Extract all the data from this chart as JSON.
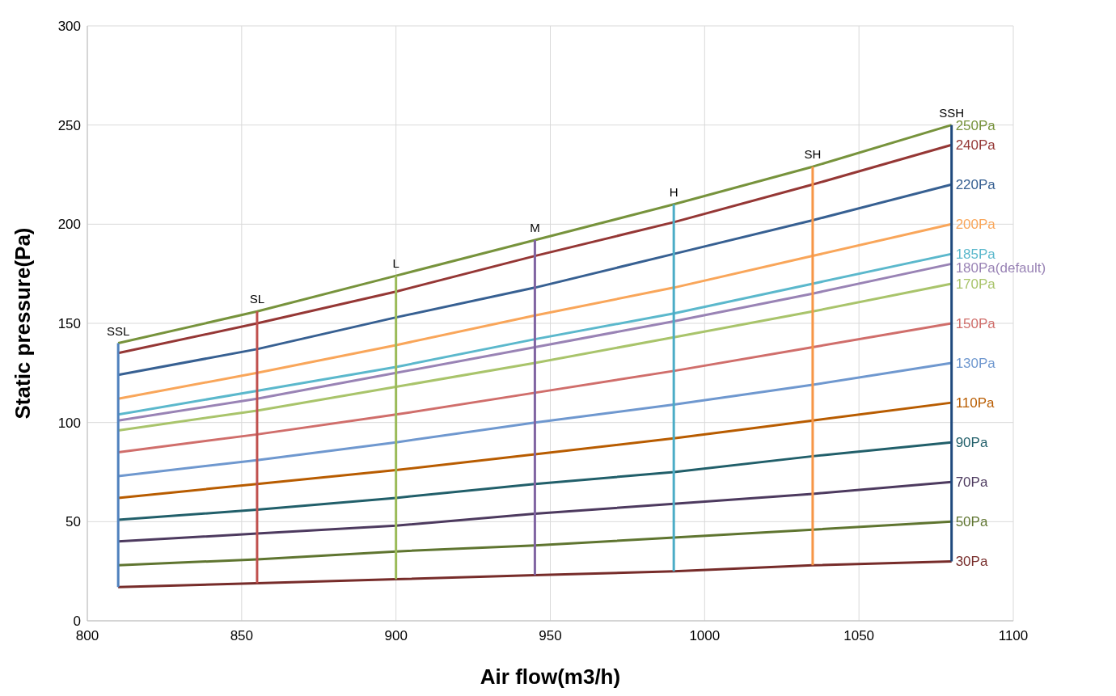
{
  "chart_data": {
    "type": "line",
    "xlabel": "Air flow(m3/h)",
    "ylabel": "Static pressure(Pa)",
    "xlim": [
      800,
      1100
    ],
    "xticks": [
      800,
      850,
      900,
      950,
      1000,
      1050,
      1100
    ],
    "ylim": [
      0,
      300
    ],
    "yticks": [
      0,
      50,
      100,
      150,
      200,
      250,
      300
    ],
    "grid": true,
    "marker": "none",
    "line_style": "solid",
    "series": [
      {
        "name": "250Pa",
        "color": "#77933c",
        "x": [
          810,
          855,
          900,
          945,
          990,
          1035,
          1080
        ],
        "values": [
          140,
          156,
          174,
          192,
          210,
          229,
          250
        ]
      },
      {
        "name": "240Pa",
        "color": "#953735",
        "x": [
          810,
          855,
          900,
          945,
          990,
          1035,
          1080
        ],
        "values": [
          135,
          150,
          166,
          184,
          201,
          220,
          240
        ]
      },
      {
        "name": "220Pa",
        "color": "#376092",
        "x": [
          810,
          855,
          900,
          945,
          990,
          1035,
          1080
        ],
        "values": [
          124,
          137,
          153,
          168,
          185,
          202,
          220
        ]
      },
      {
        "name": "200Pa",
        "color": "#f9a65a",
        "x": [
          810,
          855,
          900,
          945,
          990,
          1035,
          1080
        ],
        "values": [
          112,
          125,
          139,
          154,
          168,
          184,
          200
        ]
      },
      {
        "name": "185Pa",
        "color": "#5bb8cc",
        "x": [
          810,
          855,
          900,
          945,
          990,
          1035,
          1080
        ],
        "values": [
          104,
          116,
          128,
          142,
          155,
          170,
          185
        ]
      },
      {
        "name": "180Pa(default)",
        "color": "#9983b5",
        "x": [
          810,
          855,
          900,
          945,
          990,
          1035,
          1080
        ],
        "values": [
          101,
          112,
          125,
          138,
          151,
          165,
          180
        ]
      },
      {
        "name": "170Pa",
        "color": "#a9c46b",
        "x": [
          810,
          855,
          900,
          945,
          990,
          1035,
          1080
        ],
        "values": [
          96,
          106,
          118,
          130,
          143,
          156,
          170
        ]
      },
      {
        "name": "150Pa",
        "color": "#d06e6b",
        "x": [
          810,
          855,
          900,
          945,
          990,
          1035,
          1080
        ],
        "values": [
          85,
          94,
          104,
          115,
          126,
          138,
          150
        ]
      },
      {
        "name": "130Pa",
        "color": "#6f98cf",
        "x": [
          810,
          855,
          900,
          945,
          990,
          1035,
          1080
        ],
        "values": [
          73,
          81,
          90,
          100,
          109,
          119,
          130
        ]
      },
      {
        "name": "110Pa",
        "color": "#b85c00",
        "x": [
          810,
          855,
          900,
          945,
          990,
          1035,
          1080
        ],
        "values": [
          62,
          69,
          76,
          84,
          92,
          101,
          110
        ]
      },
      {
        "name": "90Pa",
        "color": "#215f6a",
        "x": [
          810,
          855,
          900,
          945,
          990,
          1035,
          1080
        ],
        "values": [
          51,
          56,
          62,
          69,
          75,
          83,
          90
        ]
      },
      {
        "name": "70Pa",
        "color": "#4d3a5f",
        "x": [
          810,
          855,
          900,
          945,
          990,
          1035,
          1080
        ],
        "values": [
          40,
          44,
          48,
          54,
          59,
          64,
          70
        ]
      },
      {
        "name": "50Pa",
        "color": "#5f7530",
        "x": [
          810,
          855,
          900,
          945,
          990,
          1035,
          1080
        ],
        "values": [
          28,
          31,
          35,
          38,
          42,
          46,
          50
        ]
      },
      {
        "name": "30Pa",
        "color": "#772c2a",
        "x": [
          810,
          855,
          900,
          945,
          990,
          1035,
          1080
        ],
        "values": [
          17,
          19,
          21,
          23,
          25,
          28,
          30
        ]
      },
      {
        "name": "SSL",
        "color": "#4f81bd",
        "x": [
          810,
          810
        ],
        "values": [
          17,
          140
        ]
      },
      {
        "name": "SL",
        "color": "#c0504d",
        "x": [
          855,
          855
        ],
        "values": [
          19,
          156
        ]
      },
      {
        "name": "L",
        "color": "#9bbb59",
        "x": [
          900,
          900
        ],
        "values": [
          21,
          174
        ]
      },
      {
        "name": "M",
        "color": "#8064a2",
        "x": [
          945,
          945
        ],
        "values": [
          23,
          192
        ]
      },
      {
        "name": "H",
        "color": "#4bacc6",
        "x": [
          990,
          990
        ],
        "values": [
          25,
          210
        ]
      },
      {
        "name": "SH",
        "color": "#f79646",
        "x": [
          1035,
          1035
        ],
        "values": [
          28,
          229
        ]
      },
      {
        "name": "SSH",
        "color": "#1f497d",
        "x": [
          1080,
          1080
        ],
        "values": [
          30,
          250
        ]
      }
    ]
  }
}
